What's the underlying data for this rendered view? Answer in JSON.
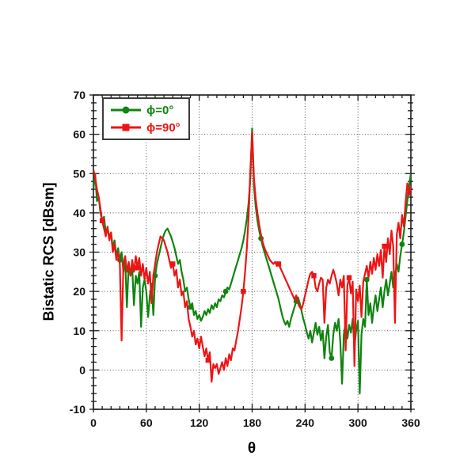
{
  "chart_data": {
    "type": "line",
    "title": "",
    "x": {
      "label": "θ",
      "min": 0,
      "max": 360,
      "major_step": 60,
      "minor_step": 10,
      "tick_labels": [
        "0",
        "60",
        "120",
        "180",
        "240",
        "300",
        "360"
      ]
    },
    "y": {
      "label": "Bistatic RCS [dBsm]",
      "min": -10,
      "max": 70,
      "major_step": 10,
      "minor_step": 2,
      "tick_labels": [
        "-10",
        "0",
        "10",
        "20",
        "30",
        "40",
        "50",
        "60",
        "70"
      ]
    },
    "grid": {
      "show": true,
      "style": "dotted",
      "color": "#555555"
    },
    "frame_color": "#1a1a1a",
    "legend": {
      "position": "top-left",
      "border_color": "#3a3a3a"
    },
    "x_start": 0,
    "x_step": 2,
    "series": [
      {
        "name": "ϕ=0°",
        "color": "#0f840f",
        "marker": "circle",
        "marker_every": 20,
        "marker_offset": 15,
        "values": [
          46,
          50,
          43,
          44,
          40,
          38,
          39,
          35,
          36,
          34,
          35,
          31,
          33,
          29,
          31,
          28,
          30,
          25,
          28,
          16,
          27,
          24,
          26,
          16.5,
          24,
          22,
          25,
          11,
          21,
          23,
          20,
          13.5,
          19,
          22,
          14,
          24,
          27,
          29,
          31,
          33,
          34.5,
          35.5,
          36,
          35,
          34,
          32.5,
          31,
          29,
          27,
          28,
          25,
          23,
          20,
          21,
          18,
          16,
          17,
          14,
          15,
          13,
          14,
          12.5,
          13.5,
          15,
          14,
          15.5,
          14.5,
          16.5,
          15.5,
          17,
          16,
          18,
          17.5,
          19,
          18.5,
          20,
          21,
          20.5,
          22,
          23.5,
          25,
          26.5,
          28,
          29.5,
          31,
          33,
          35.5,
          38.5,
          42.5,
          49,
          61.5,
          47,
          41.5,
          38,
          35.5,
          33.5,
          31.5,
          30,
          28.5,
          27,
          25.5,
          24,
          22.5,
          21,
          19.5,
          18,
          16,
          14,
          12.5,
          11.5,
          12.5,
          11,
          13,
          14.5,
          16,
          17.5,
          18.5,
          17,
          15,
          13,
          11.5,
          9.5,
          8,
          10,
          7,
          9.5,
          12,
          9,
          11,
          7.5,
          10,
          3,
          8.5,
          11.5,
          4.5,
          3,
          9,
          12,
          10,
          13,
          7,
          -3.5,
          9,
          12,
          8,
          11.5,
          9.5,
          13,
          6,
          10,
          12.5,
          -6,
          9,
          13,
          11,
          23,
          14,
          17,
          12,
          16,
          19,
          15,
          18,
          21,
          16,
          20,
          23,
          19,
          22,
          25,
          21,
          24,
          27,
          25,
          29,
          32,
          35,
          39,
          43,
          47,
          50
        ]
      },
      {
        "name": "ϕ=90°",
        "color": "#ee1414",
        "marker": "square",
        "marker_every": 20,
        "marker_offset": 5,
        "values": [
          51,
          49,
          46,
          44,
          41,
          38,
          36,
          34,
          36.5,
          33,
          35,
          30,
          32,
          28,
          30,
          27,
          7.5,
          27,
          29,
          25,
          27.5,
          24,
          28,
          25,
          29,
          26,
          28.5,
          24,
          27,
          23,
          26,
          22,
          25,
          17,
          24,
          27,
          30,
          32,
          34,
          33.5,
          33,
          31.5,
          30,
          28,
          26,
          27,
          24,
          25.5,
          21,
          23,
          19,
          20,
          16,
          17.5,
          13,
          11,
          8.5,
          10,
          6.5,
          8,
          5.5,
          8.5,
          6,
          3.5,
          5.5,
          2.5,
          4.5,
          -3,
          1.5,
          0.5,
          1.5,
          -1,
          0.5,
          2,
          0,
          3,
          1,
          4,
          2.5,
          5.5,
          5,
          7.5,
          10,
          13,
          16,
          20,
          25,
          31,
          39,
          51,
          60.5,
          49,
          43.5,
          40,
          37,
          34.5,
          32.5,
          31,
          30,
          29,
          28,
          27.5,
          27,
          27.5,
          26.5,
          27,
          26,
          25,
          24,
          23,
          22,
          21,
          20,
          19,
          18,
          19,
          17,
          16,
          15.5,
          17,
          19,
          21,
          23,
          24.5,
          25,
          24,
          21,
          20,
          22,
          23.5,
          23,
          12,
          21,
          23,
          22,
          24,
          25.5,
          24,
          22,
          19,
          23,
          21,
          24,
          5,
          21.5,
          23.5,
          19.5,
          22.5,
          1,
          20.5,
          17.5,
          21.5,
          13.5,
          22.5,
          24.5,
          26.5,
          23.5,
          27.5,
          24.5,
          28.5,
          25.5,
          29.5,
          26.5,
          30.5,
          23.5,
          31.5,
          27.5,
          33.5,
          29.5,
          35.5,
          31.5,
          12,
          34.5,
          37.5,
          33.5,
          39.5,
          36.5,
          42.5,
          47.5,
          44.5,
          47
        ]
      }
    ]
  }
}
